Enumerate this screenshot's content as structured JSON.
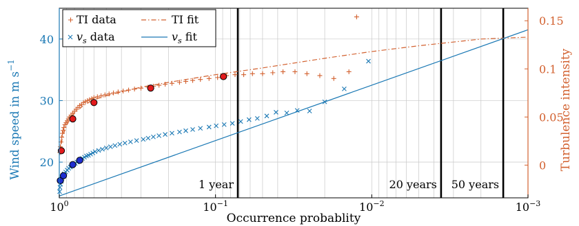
{
  "colors": {
    "vs": "#1a78b4",
    "ti": "#d2602e",
    "ti_marker_fill": "#e31a1c",
    "vs_marker_fill": "#1f2fd0",
    "grid": "#c8c8c8",
    "axis": "#000000"
  },
  "chart_data": {
    "type": "scatter",
    "xlabel": "Occurrence probablity",
    "xscale": "log-reversed",
    "xlim": [
      1,
      0.001
    ],
    "xticks": [
      {
        "value": 1,
        "base": "10",
        "exp": "0"
      },
      {
        "value": 0.1,
        "base": "10",
        "exp": "−1"
      },
      {
        "value": 0.01,
        "base": "10",
        "exp": "−2"
      },
      {
        "value": 0.001,
        "base": "10",
        "exp": "−3"
      }
    ],
    "y_left": {
      "label_text": "Wind speed in m s",
      "label_sup": "−1",
      "ticks": [
        "20",
        "30",
        "40"
      ],
      "tick_values": [
        20,
        30,
        40
      ],
      "lim": [
        14.2,
        45
      ]
    },
    "y_right": {
      "label": "Turbulence intensity",
      "ticks": [
        "0",
        "0.05",
        "0.1",
        "0.15"
      ],
      "tick_values": [
        0,
        0.05,
        0.1,
        0.15
      ],
      "lim": [
        -0.034,
        0.163
      ]
    },
    "grid": true,
    "legend_position": "top-left",
    "legend": [
      {
        "symbol": "+",
        "label": "TI data"
      },
      {
        "symbol": "dashdot",
        "label": "TI fit"
      },
      {
        "symbol": "×",
        "label_var": "v",
        "label_sub": "s",
        "label_rest": " data"
      },
      {
        "symbol": "line",
        "label_var": "v",
        "label_sub": "s",
        "label_rest": " fit"
      }
    ],
    "return_periods": [
      {
        "label": "1 year",
        "x": 0.072
      },
      {
        "label": "20 years",
        "x": 0.0036
      },
      {
        "label": "50 years",
        "x": 0.00144
      }
    ],
    "series": [
      {
        "name": "TI data",
        "axis": "right",
        "marker": "+",
        "x": [
          0.99,
          0.985,
          0.975,
          0.965,
          0.955,
          0.945,
          0.935,
          0.92,
          0.905,
          0.89,
          0.875,
          0.86,
          0.84,
          0.82,
          0.8,
          0.78,
          0.76,
          0.74,
          0.72,
          0.7,
          0.68,
          0.66,
          0.64,
          0.62,
          0.6,
          0.57,
          0.54,
          0.51,
          0.48,
          0.45,
          0.42,
          0.39,
          0.36,
          0.33,
          0.3,
          0.27,
          0.25,
          0.23,
          0.21,
          0.19,
          0.17,
          0.155,
          0.14,
          0.125,
          0.11,
          0.097,
          0.085,
          0.075,
          0.066,
          0.058,
          0.05,
          0.043,
          0.037,
          0.031,
          0.026,
          0.0215,
          0.0175,
          0.014,
          0.0125
        ],
        "y": [
          0.013,
          0.019,
          0.024,
          0.029,
          0.033,
          0.036,
          0.039,
          0.042,
          0.044,
          0.046,
          0.048,
          0.05,
          0.052,
          0.054,
          0.056,
          0.058,
          0.06,
          0.062,
          0.063,
          0.065,
          0.066,
          0.067,
          0.068,
          0.069,
          0.07,
          0.071,
          0.072,
          0.073,
          0.074,
          0.075,
          0.076,
          0.077,
          0.078,
          0.079,
          0.08,
          0.081,
          0.082,
          0.083,
          0.084,
          0.085,
          0.086,
          0.087,
          0.088,
          0.089,
          0.09,
          0.091,
          0.093,
          0.094,
          0.094,
          0.095,
          0.095,
          0.096,
          0.097,
          0.097,
          0.095,
          0.093,
          0.09,
          0.097,
          0.154
        ]
      },
      {
        "name": "TI fit",
        "axis": "right",
        "line": "dashdot",
        "x": [
          1,
          0.95,
          0.9,
          0.85,
          0.8,
          0.7,
          0.6,
          0.5,
          0.4,
          0.3,
          0.2,
          0.1,
          0.05,
          0.02,
          0.01,
          0.005,
          0.002,
          0.001
        ],
        "y": [
          0.012,
          0.03,
          0.041,
          0.048,
          0.054,
          0.062,
          0.068,
          0.072,
          0.076,
          0.081,
          0.086,
          0.094,
          0.101,
          0.111,
          0.118,
          0.124,
          0.131,
          0.133
        ]
      },
      {
        "name": "TI markers",
        "axis": "right",
        "marker": "dot",
        "x": [
          0.97,
          0.82,
          0.6,
          0.26,
          0.089
        ],
        "y": [
          0.015,
          0.048,
          0.065,
          0.08,
          0.092
        ]
      },
      {
        "name": "vs data",
        "axis": "left",
        "marker": "×",
        "x": [
          0.995,
          0.99,
          0.98,
          0.97,
          0.96,
          0.95,
          0.93,
          0.91,
          0.89,
          0.87,
          0.85,
          0.83,
          0.81,
          0.79,
          0.77,
          0.75,
          0.73,
          0.71,
          0.69,
          0.67,
          0.65,
          0.63,
          0.61,
          0.59,
          0.56,
          0.53,
          0.5,
          0.47,
          0.44,
          0.41,
          0.38,
          0.35,
          0.32,
          0.29,
          0.27,
          0.25,
          0.23,
          0.21,
          0.19,
          0.17,
          0.155,
          0.14,
          0.125,
          0.11,
          0.099,
          0.088,
          0.078,
          0.069,
          0.061,
          0.054,
          0.047,
          0.041,
          0.035,
          0.03,
          0.025,
          0.02,
          0.015,
          0.0105
        ],
        "y": [
          15.2,
          15.9,
          16.4,
          16.9,
          17.3,
          17.7,
          18.1,
          18.4,
          18.7,
          19.0,
          19.2,
          19.4,
          19.6,
          19.8,
          20.0,
          20.2,
          20.4,
          20.6,
          20.8,
          21.0,
          21.1,
          21.3,
          21.5,
          21.7,
          21.9,
          22.1,
          22.3,
          22.5,
          22.7,
          22.9,
          23.1,
          23.3,
          23.5,
          23.7,
          23.9,
          24.1,
          24.3,
          24.5,
          24.7,
          24.9,
          25.1,
          25.3,
          25.5,
          25.7,
          25.9,
          26.1,
          26.3,
          26.6,
          26.9,
          27.1,
          27.5,
          28.1,
          28.0,
          28.4,
          28.3,
          29.8,
          31.9,
          36.4
        ]
      },
      {
        "name": "vs fit",
        "axis": "left",
        "line": "solid",
        "x": [
          1,
          0.001
        ],
        "y": [
          14.5,
          41.5
        ]
      },
      {
        "name": "vs markers",
        "axis": "left",
        "marker": "dot",
        "x": [
          0.985,
          0.94,
          0.82,
          0.74
        ],
        "y": [
          17.0,
          17.8,
          19.6,
          20.3
        ]
      }
    ]
  }
}
